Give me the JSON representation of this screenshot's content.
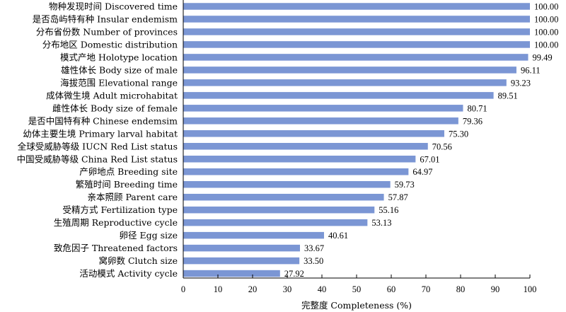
{
  "chart_data": {
    "type": "bar",
    "orientation": "horizontal",
    "categories": [
      "物种发现时间 Discovered time",
      "是否岛屿特有种 Insular endemism",
      "分布省份数 Number of provinces",
      "分布地区 Domestic distribution",
      "模式产地 Holotype location",
      "雄性体长 Body size of male",
      "海拔范围 Elevational range",
      "成体微生境 Adult microhabitat",
      "雌性体长 Body size of female",
      "是否中国特有种 Chinese endemsim",
      "幼体主要生境 Primary larval habitat",
      "全球受威胁等级 IUCN Red List status",
      "中国受威胁等级 China Red List status",
      "产卵地点 Breeding site",
      "繁殖时间 Breeding time",
      "亲本照顾 Parent care",
      "受精方式 Fertilization type",
      "生殖周期 Reproductive cycle",
      "卵径 Egg size",
      "致危因子 Threatened factors",
      "窝卵数 Clutch size",
      "活动模式 Activity cycle"
    ],
    "values": [
      100.0,
      100.0,
      100.0,
      100.0,
      99.49,
      96.11,
      93.23,
      89.51,
      80.71,
      79.36,
      75.3,
      70.56,
      67.01,
      64.97,
      59.73,
      57.87,
      55.16,
      53.13,
      40.61,
      33.67,
      33.5,
      27.92
    ],
    "value_labels": [
      "100.00",
      "100.00",
      "100.00",
      "100.00",
      "99.49",
      "96.11",
      "93.23",
      "89.51",
      "80.71",
      "79.36",
      "75.30",
      "70.56",
      "67.01",
      "64.97",
      "59.73",
      "57.87",
      "55.16",
      "53.13",
      "40.61",
      "33.67",
      "33.50",
      "27.92"
    ],
    "xlabel": "完整度 Completeness (%)",
    "xlim": [
      0,
      100
    ],
    "xticks": [
      0,
      10,
      20,
      30,
      40,
      50,
      60,
      70,
      80,
      90,
      100
    ],
    "grid": false,
    "bar_color": "#7b96d4"
  }
}
